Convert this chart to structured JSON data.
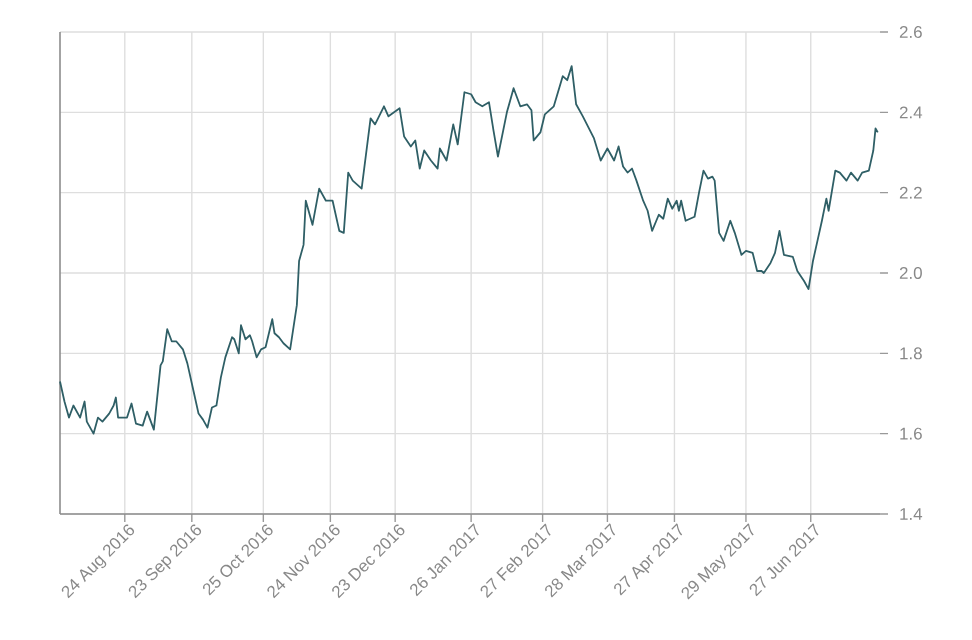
{
  "chart_data": {
    "type": "line",
    "color": "#2f5f66",
    "grid": true,
    "xlim": [
      "2016-07-26",
      "2017-07-28"
    ],
    "ylim": [
      1.4,
      2.6
    ],
    "xticks": [
      {
        "value": "2016-08-24",
        "label": "24 Aug 2016"
      },
      {
        "value": "2016-09-23",
        "label": "23 Sep 2016"
      },
      {
        "value": "2016-10-25",
        "label": "25 Oct 2016"
      },
      {
        "value": "2016-11-24",
        "label": "24 Nov 2016"
      },
      {
        "value": "2016-12-23",
        "label": "23 Dec 2016"
      },
      {
        "value": "2017-01-26",
        "label": "26 Jan 2017"
      },
      {
        "value": "2017-02-27",
        "label": "27 Feb 2017"
      },
      {
        "value": "2017-03-28",
        "label": "28 Mar 2017"
      },
      {
        "value": "2017-04-27",
        "label": "27 Apr 2017"
      },
      {
        "value": "2017-05-29",
        "label": "29 May 2017"
      },
      {
        "value": "2017-06-27",
        "label": "27 Jun 2017"
      }
    ],
    "yticks": [
      1.4,
      1.6,
      1.8,
      {
        "value": 2,
        "label": "2.0"
      },
      2.2,
      2.4,
      2.6
    ],
    "x": [
      "2016-07-26",
      "2016-07-28",
      "2016-07-30",
      "2016-08-01",
      "2016-08-04",
      "2016-08-06",
      "2016-08-07",
      "2016-08-10",
      "2016-08-12",
      "2016-08-14",
      "2016-08-17",
      "2016-08-19",
      "2016-08-20",
      "2016-08-21",
      "2016-08-25",
      "2016-08-27",
      "2016-08-29",
      "2016-09-01",
      "2016-09-03",
      "2016-09-06",
      "2016-09-09",
      "2016-09-10",
      "2016-09-12",
      "2016-09-14",
      "2016-09-16",
      "2016-09-19",
      "2016-09-21",
      "2016-09-24",
      "2016-09-26",
      "2016-09-28",
      "2016-09-30",
      "2016-10-02",
      "2016-10-04",
      "2016-10-06",
      "2016-10-08",
      "2016-10-11",
      "2016-10-12",
      "2016-10-14",
      "2016-10-15",
      "2016-10-17",
      "2016-10-19",
      "2016-10-20",
      "2016-10-22",
      "2016-10-24",
      "2016-10-26",
      "2016-10-29",
      "2016-10-30",
      "2016-11-01",
      "2016-11-03",
      "2016-11-06",
      "2016-11-09",
      "2016-11-10",
      "2016-11-12",
      "2016-11-13",
      "2016-11-16",
      "2016-11-19",
      "2016-11-22",
      "2016-11-25",
      "2016-11-28",
      "2016-11-30",
      "2016-12-02",
      "2016-12-04",
      "2016-12-08",
      "2016-12-12",
      "2016-12-14",
      "2016-12-18",
      "2016-12-20",
      "2016-12-25",
      "2016-12-27",
      "2016-12-30",
      "2017-01-01",
      "2017-01-03",
      "2017-01-05",
      "2017-01-08",
      "2017-01-11",
      "2017-01-12",
      "2017-01-15",
      "2017-01-18",
      "2017-01-20",
      "2017-01-23",
      "2017-01-26",
      "2017-01-28",
      "2017-01-31",
      "2017-02-03",
      "2017-02-05",
      "2017-02-07",
      "2017-02-11",
      "2017-02-14",
      "2017-02-17",
      "2017-02-20",
      "2017-02-22",
      "2017-02-23",
      "2017-02-26",
      "2017-02-28",
      "2017-03-04",
      "2017-03-08",
      "2017-03-10",
      "2017-03-12",
      "2017-03-14",
      "2017-03-17",
      "2017-03-22",
      "2017-03-25",
      "2017-03-28",
      "2017-03-31",
      "2017-04-02",
      "2017-04-04",
      "2017-04-06",
      "2017-04-08",
      "2017-04-10",
      "2017-04-13",
      "2017-04-15",
      "2017-04-17",
      "2017-04-20",
      "2017-04-22",
      "2017-04-24",
      "2017-04-26",
      "2017-04-28",
      "2017-04-29",
      "2017-04-30",
      "2017-05-02",
      "2017-05-06",
      "2017-05-08",
      "2017-05-10",
      "2017-05-12",
      "2017-05-14",
      "2017-05-15",
      "2017-05-17",
      "2017-05-19",
      "2017-05-22",
      "2017-05-24",
      "2017-05-27",
      "2017-05-29",
      "2017-06-01",
      "2017-06-03",
      "2017-06-05",
      "2017-06-06",
      "2017-06-09",
      "2017-06-11",
      "2017-06-13",
      "2017-06-15",
      "2017-06-19",
      "2017-06-21",
      "2017-06-24",
      "2017-06-26",
      "2017-06-28",
      "2017-06-30",
      "2017-07-02",
      "2017-07-04",
      "2017-07-05",
      "2017-07-08",
      "2017-07-10",
      "2017-07-13",
      "2017-07-15",
      "2017-07-18",
      "2017-07-20",
      "2017-07-23",
      "2017-07-25",
      "2017-07-26",
      "2017-07-27"
    ],
    "values": [
      1.73,
      1.68,
      1.64,
      1.67,
      1.64,
      1.68,
      1.63,
      1.6,
      1.64,
      1.63,
      1.65,
      1.67,
      1.69,
      1.64,
      1.64,
      1.675,
      1.625,
      1.62,
      1.655,
      1.61,
      1.77,
      1.78,
      1.86,
      1.83,
      1.83,
      1.81,
      1.775,
      1.7,
      1.65,
      1.635,
      1.615,
      1.665,
      1.67,
      1.74,
      1.79,
      1.84,
      1.835,
      1.8,
      1.87,
      1.835,
      1.845,
      1.83,
      1.79,
      1.81,
      1.815,
      1.885,
      1.85,
      1.84,
      1.825,
      1.81,
      1.92,
      2.03,
      2.07,
      2.18,
      2.12,
      2.21,
      2.18,
      2.18,
      2.105,
      2.1,
      2.25,
      2.23,
      2.21,
      2.385,
      2.37,
      2.415,
      2.39,
      2.41,
      2.34,
      2.315,
      2.33,
      2.26,
      2.305,
      2.28,
      2.26,
      2.31,
      2.28,
      2.37,
      2.32,
      2.45,
      2.445,
      2.425,
      2.415,
      2.425,
      2.355,
      2.29,
      2.4,
      2.46,
      2.415,
      2.42,
      2.405,
      2.33,
      2.35,
      2.395,
      2.415,
      2.49,
      2.48,
      2.515,
      2.42,
      2.39,
      2.335,
      2.28,
      2.31,
      2.28,
      2.315,
      2.265,
      2.25,
      2.26,
      2.23,
      2.18,
      2.155,
      2.105,
      2.145,
      2.135,
      2.185,
      2.16,
      2.18,
      2.155,
      2.18,
      2.13,
      2.14,
      2.2,
      2.255,
      2.235,
      2.24,
      2.23,
      2.1,
      2.08,
      2.13,
      2.1,
      2.045,
      2.055,
      2.05,
      2.005,
      2.005,
      2.0,
      2.025,
      2.05,
      2.105,
      2.045,
      2.04,
      2.005,
      1.98,
      1.96,
      2.03,
      2.08,
      2.13,
      2.185,
      2.155,
      2.255,
      2.25,
      2.23,
      2.25,
      2.23,
      2.25,
      2.255,
      2.305,
      2.36,
      2.35
    ]
  }
}
